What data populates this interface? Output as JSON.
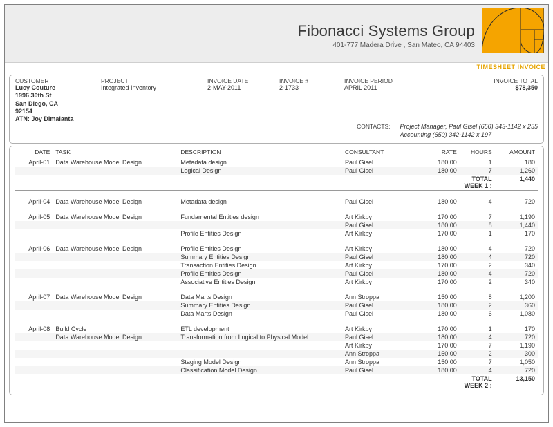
{
  "doc": {
    "company": "Fibonacci Systems Group",
    "address": "401-777 Madera Drive , San Mateo, CA  94403",
    "doc_type": "TIMESHEET INVOICE",
    "logo_fill": "#f5a400",
    "logo_stroke": "#2a2a2a"
  },
  "header": {
    "labels": {
      "customer": "CUSTOMER",
      "project": "PROJECT",
      "invoice_date": "INVOICE DATE",
      "invoice_num": "INVOICE #",
      "invoice_period": "INVOICE PERIOD",
      "invoice_total": "INVOICE TOTAL",
      "contacts": "CONTACTS:"
    },
    "customer": {
      "name": "Lucy Couture",
      "street": "1996 30th St",
      "city": "San Diego, CA",
      "zip": "92154",
      "attn": "ATN: Joy Dimalanta"
    },
    "project": "Integrated Inventory",
    "invoice_date": "2-MAY-2011",
    "invoice_num": "2-1733",
    "invoice_period": "APRIL 2011",
    "invoice_total": "$78,350",
    "contacts": [
      "Project Manager, Paul Gisel  (650) 343-1142 x 255",
      "Accounting   (650) 342-1142 x 197"
    ]
  },
  "columns": {
    "date": "DATE",
    "task": "TASK",
    "description": "DESCRIPTION",
    "consultant": "CONSULTANT",
    "rate": "RATE",
    "hours": "HOURS",
    "amount": "AMOUNT"
  },
  "rows": [
    {
      "type": "line",
      "band": false,
      "date": "April-01",
      "task": "Data Warehouse Model Design",
      "desc": "Metadata design",
      "cons": "Paul Gisel",
      "rate": "180.00",
      "hours": "1",
      "amount": "180"
    },
    {
      "type": "line",
      "band": true,
      "date": "",
      "task": "",
      "desc": "Logical Design",
      "cons": "Paul Gisel",
      "rate": "180.00",
      "hours": "7",
      "amount": "1,260"
    },
    {
      "type": "weeksum",
      "label": "TOTAL WEEK 1 :",
      "amount": "1,440"
    },
    {
      "type": "sep"
    },
    {
      "type": "gap"
    },
    {
      "type": "line",
      "band": false,
      "date": "April-04",
      "task": "Data Warehouse Model Design",
      "desc": "Metadata design",
      "cons": "Paul Gisel",
      "rate": "180.00",
      "hours": "4",
      "amount": "720"
    },
    {
      "type": "gap"
    },
    {
      "type": "line",
      "band": false,
      "date": "April-05",
      "task": "Data Warehouse Model Design",
      "desc": "Fundamental Entities design",
      "cons": "Art Kirkby",
      "rate": "170.00",
      "hours": "7",
      "amount": "1,190"
    },
    {
      "type": "line",
      "band": true,
      "date": "",
      "task": "",
      "desc": "",
      "cons": "Paul Gisel",
      "rate": "180.00",
      "hours": "8",
      "amount": "1,440"
    },
    {
      "type": "line",
      "band": false,
      "date": "",
      "task": "",
      "desc": "Profile Entities Design",
      "cons": "Art Kirkby",
      "rate": "170.00",
      "hours": "1",
      "amount": "170"
    },
    {
      "type": "gap"
    },
    {
      "type": "line",
      "band": false,
      "date": "April-06",
      "task": "Data Warehouse Model Design",
      "desc": "Profile Entities Design",
      "cons": "Art Kirkby",
      "rate": "180.00",
      "hours": "4",
      "amount": "720"
    },
    {
      "type": "line",
      "band": true,
      "date": "",
      "task": "",
      "desc": "Summary Entities Design",
      "cons": "Paul Gisel",
      "rate": "180.00",
      "hours": "4",
      "amount": "720"
    },
    {
      "type": "line",
      "band": false,
      "date": "",
      "task": "",
      "desc": "Transaction Entities Design",
      "cons": "Art Kirkby",
      "rate": "170.00",
      "hours": "2",
      "amount": "340"
    },
    {
      "type": "line",
      "band": true,
      "date": "",
      "task": "",
      "desc": "Profile Entities Design",
      "cons": "Paul Gisel",
      "rate": "180.00",
      "hours": "4",
      "amount": "720"
    },
    {
      "type": "line",
      "band": false,
      "date": "",
      "task": "",
      "desc": "Associative Entities Design",
      "cons": "Art Kirkby",
      "rate": "170.00",
      "hours": "2",
      "amount": "340"
    },
    {
      "type": "gap"
    },
    {
      "type": "line",
      "band": false,
      "date": "April-07",
      "task": "Data Warehouse Model Design",
      "desc": "Data Marts Design",
      "cons": "Ann Stroppa",
      "rate": "150.00",
      "hours": "8",
      "amount": "1,200"
    },
    {
      "type": "line",
      "band": true,
      "date": "",
      "task": "",
      "desc": "Summary Entities Design",
      "cons": "Paul Gisel",
      "rate": "180.00",
      "hours": "2",
      "amount": "360"
    },
    {
      "type": "line",
      "band": false,
      "date": "",
      "task": "",
      "desc": "Data Marts Design",
      "cons": "Paul Gisel",
      "rate": "180.00",
      "hours": "6",
      "amount": "1,080"
    },
    {
      "type": "gap"
    },
    {
      "type": "line",
      "band": false,
      "date": "April-08",
      "task": "Build Cycle",
      "desc": "ETL development",
      "cons": "Art Kirkby",
      "rate": "170.00",
      "hours": "1",
      "amount": "170"
    },
    {
      "type": "line",
      "band": true,
      "date": "",
      "task": "Data Warehouse Model Design",
      "desc": "Transformation from Logical to Physical Model",
      "cons": "Paul Gisel",
      "rate": "180.00",
      "hours": "4",
      "amount": "720"
    },
    {
      "type": "line",
      "band": false,
      "date": "",
      "task": "",
      "desc": "",
      "cons": "Art Kirkby",
      "rate": "170.00",
      "hours": "7",
      "amount": "1,190"
    },
    {
      "type": "line",
      "band": true,
      "date": "",
      "task": "",
      "desc": "",
      "cons": "Ann Stroppa",
      "rate": "150.00",
      "hours": "2",
      "amount": "300"
    },
    {
      "type": "line",
      "band": false,
      "date": "",
      "task": "",
      "desc": "Staging Model Design",
      "cons": "Ann Stroppa",
      "rate": "150.00",
      "hours": "7",
      "amount": "1,050"
    },
    {
      "type": "line",
      "band": true,
      "date": "",
      "task": "",
      "desc": "Classification Model Design",
      "cons": "Paul Gisel",
      "rate": "180.00",
      "hours": "4",
      "amount": "720"
    },
    {
      "type": "weeksum",
      "label": "TOTAL WEEK 2 :",
      "amount": "13,150"
    },
    {
      "type": "sep"
    }
  ]
}
